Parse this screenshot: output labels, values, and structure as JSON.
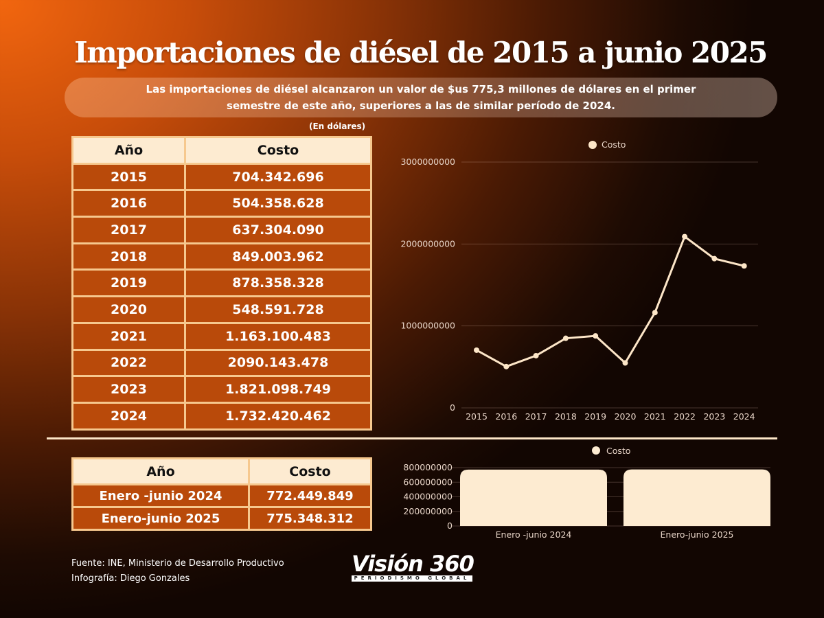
{
  "title": "Importaciones de diésel de 2015 a junio 2025",
  "subtitle_line1": "Las importaciones de diésel alcanzaron un valor de $us 775,3 millones de dólares en el primer",
  "subtitle_line2": "semestre de este año, superiores a las de similar período de 2024.",
  "unit_note": "(En dólares)",
  "table_annual": {
    "headers": [
      "Año",
      "Costo"
    ],
    "rows": [
      [
        "2015",
        "704.342.696"
      ],
      [
        "2016",
        "504.358.628"
      ],
      [
        "2017",
        "637.304.090"
      ],
      [
        "2018",
        "849.003.962"
      ],
      [
        "2019",
        "878.358.328"
      ],
      [
        "2020",
        "548.591.728"
      ],
      [
        "2021",
        "1.163.100.483"
      ],
      [
        "2022",
        "2090.143.478"
      ],
      [
        "2023",
        "1.821.098.749"
      ],
      [
        "2024",
        "1.732.420.462"
      ]
    ]
  },
  "table_semester": {
    "headers": [
      "Año",
      "Costo"
    ],
    "rows": [
      [
        "Enero -junio 2024",
        "772.449.849"
      ],
      [
        "Enero-junio 2025",
        "775.348.312"
      ]
    ]
  },
  "chart_data": [
    {
      "type": "line",
      "legend": "Costo",
      "legend_placement": "top",
      "x": [
        "2015",
        "2016",
        "2017",
        "2018",
        "2019",
        "2020",
        "2021",
        "2022",
        "2023",
        "2024"
      ],
      "series": [
        {
          "name": "Costo",
          "values": [
            704342696,
            504358628,
            637304090,
            849003962,
            878358328,
            548591728,
            1163100483,
            2090143478,
            1821098749,
            1732420462
          ]
        }
      ],
      "ylim": [
        0,
        3000000000
      ],
      "yticks": [
        "0",
        "1000000000",
        "2000000000",
        "3000000000"
      ],
      "grid": true,
      "color": "#fde6c8"
    },
    {
      "type": "bar",
      "legend": "Costo",
      "legend_placement": "top",
      "categories": [
        "Enero -junio 2024",
        "Enero-junio 2025"
      ],
      "series": [
        {
          "name": "Costo",
          "values": [
            772449849,
            775348312
          ]
        }
      ],
      "ylim": [
        0,
        800000000
      ],
      "yticks": [
        "0",
        "200000000",
        "400000000",
        "600000000",
        "800000000"
      ],
      "grid": true,
      "color": "#fdebd1"
    }
  ],
  "footer": {
    "source": "Fuente: INE, Ministerio de Desarrollo Productivo",
    "credit": "Infografía: Diego Gonzales"
  },
  "logo": {
    "main": "Visión 360",
    "tagline": "PERIODISMO GLOBAL"
  },
  "colors": {
    "accent": "#f2660f",
    "cream": "#fdebd1",
    "cell": "#b94a0a"
  }
}
